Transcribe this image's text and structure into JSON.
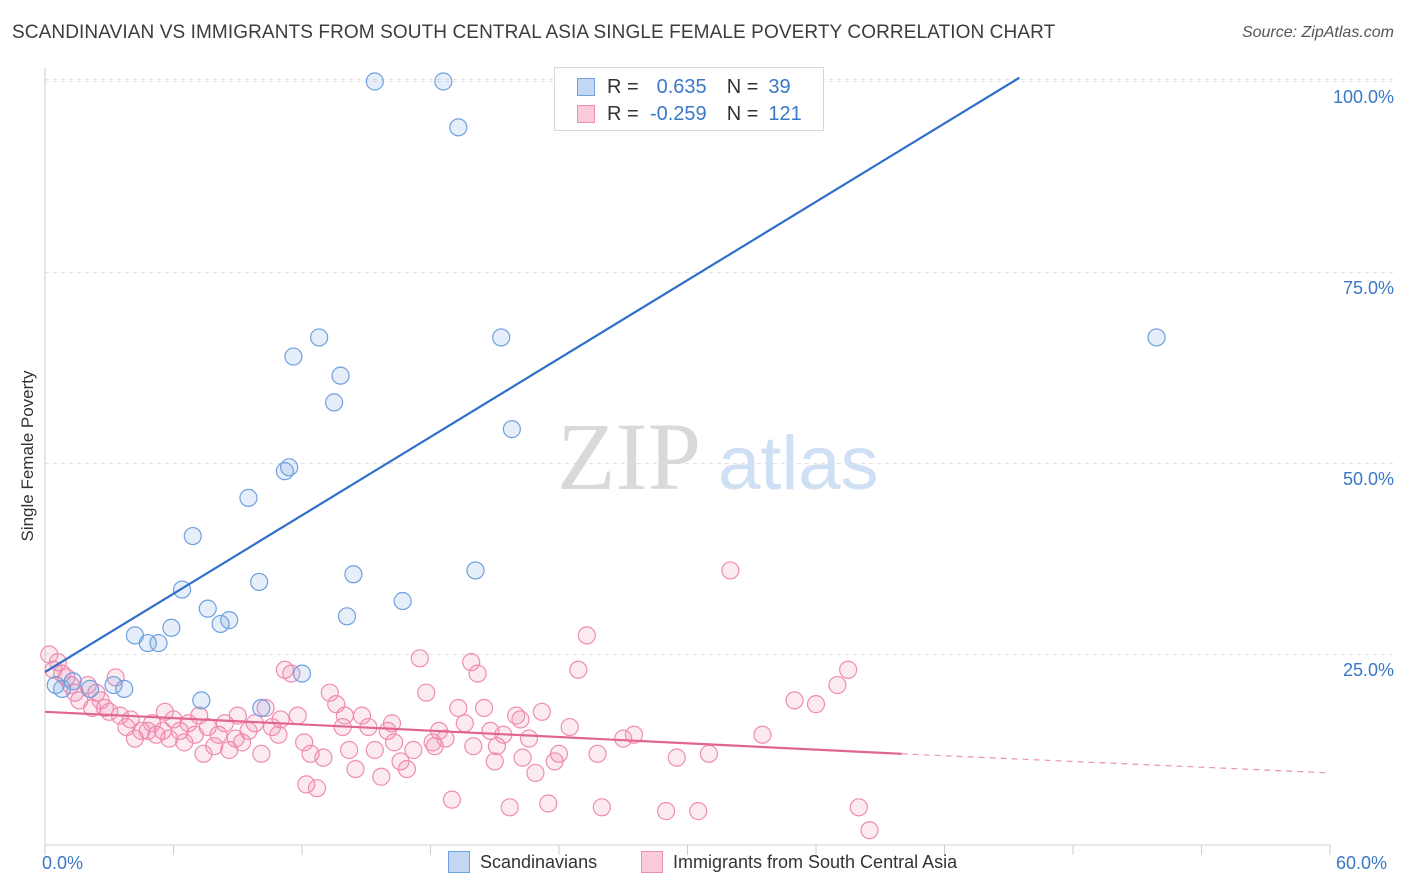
{
  "title": "SCANDINAVIAN VS IMMIGRANTS FROM SOUTH CENTRAL ASIA SINGLE FEMALE POVERTY CORRELATION CHART",
  "source": "Source: ZipAtlas.com",
  "watermark": {
    "zip": "ZIP",
    "atlas": "atlas"
  },
  "legend": {
    "scandinavian": {
      "r_label": "R =",
      "r_value": "0.635",
      "n_label": "N =",
      "n_value": "39",
      "color": "#6fa0e0"
    },
    "immigrants": {
      "r_label": "R =",
      "r_value": "-0.259",
      "n_label": "N =",
      "n_value": "121",
      "color": "#f08cb0"
    }
  },
  "bottom_legend": {
    "scandinavians": "Scandinavians",
    "immigrants": "Immigrants from South Central Asia"
  },
  "x_axis": {
    "min_label": "0.0%",
    "max_label": "60.0%"
  },
  "y_axis": {
    "label": "Single Female Poverty",
    "ticks": [
      "25.0%",
      "50.0%",
      "75.0%",
      "100.0%"
    ]
  },
  "chart_data": {
    "type": "scatter",
    "ylabel": "Single Female Poverty",
    "xlim": [
      0,
      60
    ],
    "ylim": [
      0,
      102
    ],
    "y_ticks": [
      25,
      50,
      75,
      100
    ],
    "grid": true,
    "series": [
      {
        "name": "Scandinavians",
        "color": "#6fa0e0",
        "points": [
          [
            0.5,
            21
          ],
          [
            0.8,
            20.5
          ],
          [
            1.3,
            21.5
          ],
          [
            2.1,
            20.5
          ],
          [
            3.2,
            21
          ],
          [
            3.7,
            20.5
          ],
          [
            4.2,
            27.5
          ],
          [
            4.8,
            26.5
          ],
          [
            5.3,
            26.5
          ],
          [
            5.9,
            28.5
          ],
          [
            6.4,
            33.5
          ],
          [
            6.9,
            40.5
          ],
          [
            7.3,
            19
          ],
          [
            7.6,
            31
          ],
          [
            8.2,
            29
          ],
          [
            8.6,
            29.5
          ],
          [
            9.5,
            45.5
          ],
          [
            10.0,
            34.5
          ],
          [
            10.1,
            18
          ],
          [
            11.2,
            49
          ],
          [
            11.4,
            49.5
          ],
          [
            11.6,
            64
          ],
          [
            12.0,
            22.5
          ],
          [
            12.8,
            66.5
          ],
          [
            13.5,
            58
          ],
          [
            13.8,
            61.5
          ],
          [
            14.1,
            30
          ],
          [
            14.4,
            35.5
          ],
          [
            15.4,
            100
          ],
          [
            16.7,
            32
          ],
          [
            18.6,
            100
          ],
          [
            19.3,
            94
          ],
          [
            20.1,
            36
          ],
          [
            21.3,
            66.5
          ],
          [
            21.8,
            54.5
          ],
          [
            51.9,
            66.5
          ]
        ],
        "trend": {
          "x": [
            0,
            45.5
          ],
          "y": [
            22.7,
            100.5
          ]
        }
      },
      {
        "name": "Immigrants from South Central Asia",
        "color": "#f08cb0",
        "points": [
          [
            0.2,
            25
          ],
          [
            0.4,
            23
          ],
          [
            0.8,
            22.5
          ],
          [
            1.0,
            22
          ],
          [
            1.2,
            21
          ],
          [
            1.6,
            19
          ],
          [
            2.0,
            21
          ],
          [
            2.2,
            18
          ],
          [
            2.4,
            20
          ],
          [
            2.6,
            19
          ],
          [
            2.8,
            18
          ],
          [
            3.0,
            17.5
          ],
          [
            3.3,
            22
          ],
          [
            3.5,
            17
          ],
          [
            3.8,
            15.5
          ],
          [
            4.0,
            16.5
          ],
          [
            4.2,
            14
          ],
          [
            4.5,
            15
          ],
          [
            4.8,
            15
          ],
          [
            5.0,
            16
          ],
          [
            5.2,
            14.5
          ],
          [
            5.5,
            15
          ],
          [
            5.8,
            14
          ],
          [
            6.0,
            16.5
          ],
          [
            6.3,
            15
          ],
          [
            6.5,
            13.5
          ],
          [
            6.7,
            16
          ],
          [
            7.0,
            14.5
          ],
          [
            7.2,
            17
          ],
          [
            7.4,
            12
          ],
          [
            7.6,
            15.5
          ],
          [
            7.9,
            13
          ],
          [
            8.1,
            14.5
          ],
          [
            8.4,
            16
          ],
          [
            8.6,
            12.5
          ],
          [
            8.9,
            14
          ],
          [
            9.2,
            13.5
          ],
          [
            9.5,
            15
          ],
          [
            9.8,
            16
          ],
          [
            10.1,
            12
          ],
          [
            10.3,
            18
          ],
          [
            10.6,
            15.5
          ],
          [
            10.9,
            14.5
          ],
          [
            11.2,
            23
          ],
          [
            11.5,
            22.5
          ],
          [
            11.8,
            17
          ],
          [
            12.1,
            13.5
          ],
          [
            12.4,
            12
          ],
          [
            12.7,
            7.5
          ],
          [
            13.0,
            11.5
          ],
          [
            13.3,
            20
          ],
          [
            13.6,
            18.5
          ],
          [
            13.9,
            15.5
          ],
          [
            14.2,
            12.5
          ],
          [
            14.5,
            10
          ],
          [
            14.8,
            17
          ],
          [
            15.1,
            15.5
          ],
          [
            15.4,
            12.5
          ],
          [
            15.7,
            9
          ],
          [
            16.0,
            15
          ],
          [
            16.3,
            13.5
          ],
          [
            16.6,
            11
          ],
          [
            16.9,
            10
          ],
          [
            17.2,
            12.5
          ],
          [
            17.5,
            24.5
          ],
          [
            17.8,
            20
          ],
          [
            18.1,
            13.5
          ],
          [
            18.4,
            15
          ],
          [
            18.7,
            14
          ],
          [
            19.0,
            6
          ],
          [
            19.3,
            18
          ],
          [
            19.6,
            16
          ],
          [
            19.9,
            24
          ],
          [
            20.2,
            22.5
          ],
          [
            20.5,
            18
          ],
          [
            20.8,
            15
          ],
          [
            21.1,
            13
          ],
          [
            21.4,
            14.5
          ],
          [
            21.7,
            5
          ],
          [
            22.0,
            17
          ],
          [
            22.3,
            11.5
          ],
          [
            22.6,
            14
          ],
          [
            22.9,
            9.5
          ],
          [
            23.2,
            17.5
          ],
          [
            23.5,
            5.5
          ],
          [
            24.0,
            12
          ],
          [
            24.5,
            15.5
          ],
          [
            24.9,
            23
          ],
          [
            25.3,
            27.5
          ],
          [
            26.0,
            5
          ],
          [
            27.0,
            14
          ],
          [
            29.0,
            4.5
          ],
          [
            29.5,
            11.5
          ],
          [
            30.5,
            4.5
          ],
          [
            31.0,
            12
          ],
          [
            32.0,
            36
          ],
          [
            33.5,
            14.5
          ],
          [
            35.0,
            19
          ],
          [
            36.0,
            18.5
          ],
          [
            37.0,
            21
          ],
          [
            37.5,
            23
          ],
          [
            38.0,
            5
          ],
          [
            38.5,
            2
          ],
          [
            0.6,
            24
          ],
          [
            1.4,
            20
          ],
          [
            5.6,
            17.5
          ],
          [
            9.0,
            17
          ],
          [
            11.0,
            16.5
          ],
          [
            12.2,
            8
          ],
          [
            14.0,
            17
          ],
          [
            16.2,
            16
          ],
          [
            18.2,
            13
          ],
          [
            20.0,
            13
          ],
          [
            21.0,
            11
          ],
          [
            22.2,
            16.5
          ],
          [
            23.8,
            11
          ],
          [
            25.8,
            12
          ],
          [
            27.5,
            14.5
          ]
        ],
        "trend": {
          "x": [
            0,
            40
          ],
          "y": [
            17.5,
            12
          ]
        },
        "trend_dashed": {
          "x": [
            40,
            60
          ],
          "y": [
            12,
            9.5
          ]
        }
      }
    ]
  }
}
